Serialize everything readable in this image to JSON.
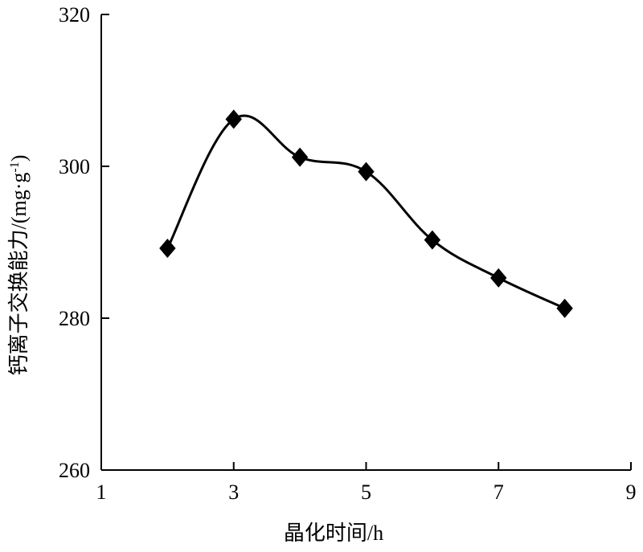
{
  "chart_data": {
    "type": "line",
    "title": "",
    "xlabel": "晶化时间/h",
    "ylabel": "钙离子交换能力/(mg·g",
    "ylabel_sup": "-1",
    "ylabel_close": ")",
    "xlim": [
      1,
      9
    ],
    "ylim": [
      260,
      320
    ],
    "xticks": [
      "1",
      "3",
      "5",
      "7",
      "9"
    ],
    "yticks": [
      "260",
      "280",
      "300",
      "320"
    ],
    "grid": false,
    "legend": "none",
    "marker": "diamond",
    "line_color": "#000000",
    "series": [
      {
        "x": [
          2,
          3,
          4,
          5,
          6,
          7,
          8
        ],
        "y": [
          289.2,
          306.2,
          301.2,
          299.3,
          290.3,
          285.3,
          281.3
        ]
      }
    ]
  }
}
